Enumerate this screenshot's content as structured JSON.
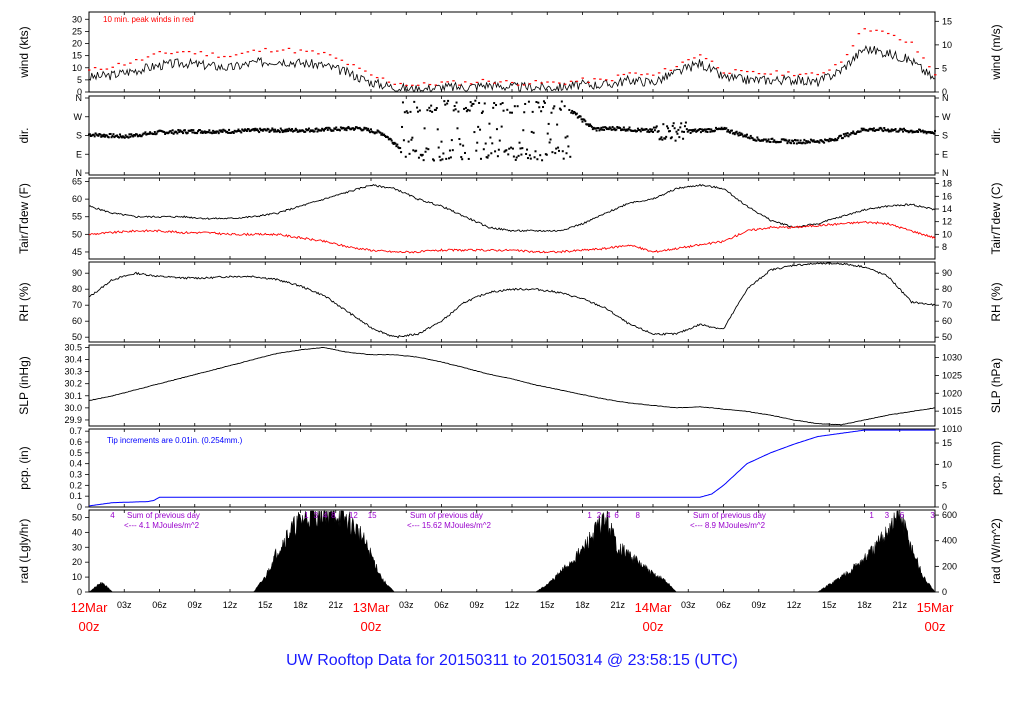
{
  "title": "UW Rooftop Data for 20150311  to  20150314 @ 23:58:15  (UTC)",
  "colors": {
    "black": "#000000",
    "red": "#ff0000",
    "blue": "#0000ff",
    "title_blue": "#1a1aff",
    "purple": "#9900cc"
  },
  "x_axis": {
    "hour_ticks": [
      "03z",
      "06z",
      "09z",
      "12z",
      "15z",
      "18z",
      "21z",
      "03z",
      "06z",
      "09z",
      "12z",
      "15z",
      "18z",
      "21z",
      "03z",
      "06z",
      "09z",
      "12z",
      "15z",
      "18z",
      "21z"
    ],
    "day_labels": [
      {
        "date": "12Mar",
        "hour": "00z"
      },
      {
        "date": "13Mar",
        "hour": "00z"
      },
      {
        "date": "14Mar",
        "hour": "00z"
      },
      {
        "date": "15Mar",
        "hour": "00z"
      }
    ]
  },
  "panels": {
    "wind": {
      "left_label": "wind (kts)",
      "right_label": "wind (m/s)",
      "left_ticks": [
        "0",
        "5",
        "10",
        "15",
        "20",
        "25",
        "30"
      ],
      "right_ticks": [
        "0",
        "5",
        "10",
        "15"
      ],
      "annotation": "10 min. peak winds in red"
    },
    "dir": {
      "left_label": "dir.",
      "right_label": "dir.",
      "ticks": [
        "N",
        "E",
        "S",
        "W",
        "N"
      ]
    },
    "temp": {
      "left_label": "Tair/Tdew (F)",
      "right_label": "Tair/Tdew (C)",
      "left_ticks": [
        "45",
        "50",
        "55",
        "60",
        "65"
      ],
      "right_ticks": [
        "8",
        "10",
        "12",
        "14",
        "16",
        "18"
      ]
    },
    "rh": {
      "left_label": "RH (%)",
      "right_label": "RH (%)",
      "left_ticks": [
        "50",
        "60",
        "70",
        "80",
        "90"
      ],
      "right_ticks": [
        "50",
        "60",
        "70",
        "80",
        "90"
      ]
    },
    "slp": {
      "left_label": "SLP (inHg)",
      "right_label": "SLP (hPa)",
      "left_ticks": [
        "29.9",
        "30.0",
        "30.1",
        "30.2",
        "30.3",
        "30.4",
        "30.5"
      ],
      "right_ticks": [
        "1010",
        "1015",
        "1020",
        "1025",
        "1030"
      ]
    },
    "pcp": {
      "left_label": "pcp. (in)",
      "right_label": "pcp. (mm)",
      "left_ticks": [
        "0",
        "0.1",
        "0.2",
        "0.3",
        "0.4",
        "0.5",
        "0.6",
        "0.7"
      ],
      "right_ticks": [
        "0",
        "5",
        "10",
        "15"
      ],
      "annotation": "Tip increments are 0.01in. (0.254mm.)"
    },
    "rad": {
      "left_label": "rad (Lgly/hr)",
      "right_label": "rad (W/m^2)",
      "left_ticks": [
        "0",
        "10",
        "20",
        "30",
        "40",
        "50"
      ],
      "right_ticks": [
        "0",
        "200",
        "400",
        "600"
      ],
      "sums": [
        {
          "line1": "Sum of previous day",
          "line2": "<--- 4.1 MJoules/m^2"
        },
        {
          "line1": "Sum of previous day",
          "line2": "<--- 15.62 MJoules/m^2"
        },
        {
          "line1": "Sum of previous day",
          "line2": "<--- 8.9 MJoules/m^2"
        }
      ],
      "hour_marks": [
        {
          "hour": 2,
          "text": "4"
        },
        {
          "hour": 18.5,
          "text": "1"
        },
        {
          "hour": 19.3,
          "text": "3"
        },
        {
          "hour": 20.1,
          "text": "4"
        },
        {
          "hour": 20.8,
          "text": "8"
        },
        {
          "hour": 22.5,
          "text": "12"
        },
        {
          "hour": 24.1,
          "text": "15"
        },
        {
          "hour": 42.6,
          "text": "1"
        },
        {
          "hour": 43.4,
          "text": "2"
        },
        {
          "hour": 44.2,
          "text": "4"
        },
        {
          "hour": 44.9,
          "text": "6"
        },
        {
          "hour": 46.7,
          "text": "8"
        },
        {
          "hour": 66.6,
          "text": "1"
        },
        {
          "hour": 67.9,
          "text": "3"
        },
        {
          "hour": 69.2,
          "text": "6"
        },
        {
          "hour": 71.8,
          "text": "3"
        }
      ]
    }
  },
  "chart_data": [
    {
      "type": "line",
      "title": "wind (kts)",
      "annotation": "10 min. peak winds in red",
      "xlabel": "",
      "ylabel": "wind (kts)",
      "y2label": "wind (m/s)",
      "ylim": [
        0,
        33
      ],
      "xlim_hours": [
        0,
        72
      ],
      "series": [
        {
          "x_hours": [
            0,
            2,
            4,
            6,
            8,
            10,
            12,
            14,
            16,
            18,
            20,
            22,
            24,
            26,
            28,
            30,
            32,
            34,
            36,
            38,
            40,
            42,
            44,
            46,
            48,
            50,
            52,
            54,
            56,
            58,
            60,
            62,
            64,
            66,
            68,
            70,
            72
          ],
          "values": [
            6,
            7,
            9,
            11,
            12,
            11,
            10,
            12,
            13,
            12,
            11,
            8,
            4,
            2,
            1,
            2,
            2,
            3,
            2,
            2,
            2,
            3,
            3,
            5,
            4,
            8,
            12,
            6,
            5,
            5,
            5,
            4,
            9,
            18,
            16,
            13,
            5
          ]
        },
        {
          "x_hours": [
            0,
            2,
            4,
            6,
            8,
            10,
            12,
            14,
            16,
            18,
            20,
            22,
            24,
            26,
            28,
            30,
            32,
            34,
            36,
            38,
            40,
            42,
            44,
            46,
            48,
            50,
            52,
            54,
            56,
            58,
            60,
            62,
            64,
            66,
            68,
            70,
            72
          ],
          "values": [
            9,
            11,
            13,
            16,
            17,
            16,
            15,
            17,
            18,
            17,
            16,
            12,
            7,
            4,
            3,
            4,
            4,
            5,
            4,
            4,
            4,
            5,
            5,
            8,
            7,
            11,
            16,
            9,
            8,
            8,
            8,
            7,
            13,
            27,
            24,
            20,
            8
          ]
        }
      ]
    },
    {
      "type": "scatter",
      "title": "dir.",
      "ylabel": "dir.",
      "ylim": [
        "N",
        "E",
        "S",
        "W",
        "N"
      ],
      "series": [
        {
          "x_hours": [
            0,
            3,
            6,
            9,
            12,
            15,
            18,
            21,
            23,
            25,
            27,
            29,
            31,
            33,
            35,
            37,
            39,
            41,
            43,
            45,
            48,
            51,
            54,
            57,
            60,
            63,
            66,
            69,
            72
          ],
          "values_deg": [
            185,
            175,
            195,
            200,
            200,
            205,
            205,
            210,
            215,
            190,
            100,
            300,
            100,
            320,
            110,
            300,
            100,
            300,
            210,
            215,
            200,
            200,
            210,
            160,
            150,
            155,
            210,
            205,
            195
          ]
        }
      ]
    },
    {
      "type": "line",
      "title": "Tair/Tdew (F)",
      "ylabel": "Tair/Tdew (F)",
      "y2label": "Tair/Tdew (C)",
      "ylim": [
        43,
        66
      ],
      "xlim_hours": [
        0,
        72
      ],
      "series": [
        {
          "x_hours": [
            0,
            2,
            4,
            6,
            8,
            10,
            12,
            14,
            16,
            18,
            20,
            22,
            24,
            26,
            28,
            30,
            32,
            34,
            36,
            38,
            40,
            42,
            44,
            46,
            48,
            50,
            52,
            54,
            56,
            58,
            60,
            62,
            64,
            66,
            68,
            70,
            72
          ],
          "values": [
            58,
            56,
            55,
            55,
            55,
            54.5,
            54.5,
            55,
            56,
            58,
            60,
            62,
            64,
            63,
            60,
            58,
            55,
            52,
            51,
            51,
            51,
            53,
            56,
            59,
            60,
            63,
            64,
            63,
            58,
            54,
            52,
            53,
            55,
            57,
            58,
            58.5,
            57
          ]
        },
        {
          "x_hours": [
            0,
            2,
            4,
            6,
            8,
            10,
            12,
            14,
            16,
            18,
            20,
            22,
            24,
            26,
            28,
            30,
            32,
            34,
            36,
            38,
            40,
            42,
            44,
            46,
            48,
            50,
            52,
            54,
            56,
            58,
            60,
            62,
            64,
            66,
            68,
            70,
            72
          ],
          "values": [
            50,
            50.5,
            51,
            51,
            50.5,
            50.5,
            50,
            50,
            50,
            49,
            48,
            46.5,
            45.5,
            45,
            45,
            45.5,
            45.5,
            45.5,
            45.5,
            45,
            45,
            45.5,
            46,
            47,
            45,
            46,
            47,
            48,
            51,
            52,
            52,
            52.5,
            53,
            53.5,
            53,
            51,
            49
          ]
        }
      ]
    },
    {
      "type": "line",
      "title": "RH (%)",
      "ylabel": "RH (%)",
      "y2label": "RH (%)",
      "ylim": [
        47,
        97
      ],
      "xlim_hours": [
        0,
        72
      ],
      "series": [
        {
          "x_hours": [
            0,
            2,
            4,
            6,
            8,
            10,
            12,
            14,
            16,
            18,
            20,
            22,
            24,
            26,
            28,
            30,
            32,
            34,
            36,
            38,
            40,
            42,
            44,
            46,
            48,
            50,
            52,
            54,
            56,
            58,
            60,
            62,
            64,
            66,
            68,
            70,
            72
          ],
          "values": [
            75,
            86,
            90,
            88,
            87,
            87,
            88,
            88,
            86,
            82,
            76,
            66,
            56,
            50,
            52,
            60,
            72,
            78,
            80,
            80,
            78,
            74,
            68,
            58,
            52,
            52,
            58,
            55,
            80,
            92,
            95,
            96,
            96,
            94,
            88,
            72,
            70
          ]
        }
      ]
    },
    {
      "type": "line",
      "title": "SLP (inHg)",
      "ylabel": "SLP (inHg)",
      "y2label": "SLP (hPa)",
      "ylim": [
        29.85,
        30.52
      ],
      "xlim_hours": [
        0,
        72
      ],
      "series": [
        {
          "x_hours": [
            0,
            2,
            4,
            6,
            8,
            10,
            12,
            14,
            16,
            18,
            20,
            22,
            24,
            26,
            28,
            30,
            32,
            34,
            36,
            38,
            40,
            42,
            44,
            46,
            48,
            50,
            52,
            54,
            56,
            58,
            60,
            62,
            64,
            66,
            68,
            70,
            72
          ],
          "values": [
            30.06,
            30.1,
            30.15,
            30.2,
            30.25,
            30.3,
            30.35,
            30.4,
            30.45,
            30.48,
            30.5,
            30.46,
            30.44,
            30.44,
            30.42,
            30.38,
            30.33,
            30.28,
            30.24,
            30.19,
            30.15,
            30.11,
            30.07,
            30.04,
            30.02,
            30.0,
            30.01,
            29.99,
            29.97,
            29.94,
            29.9,
            29.87,
            29.86,
            29.9,
            29.94,
            29.97,
            30.0
          ]
        }
      ]
    },
    {
      "type": "area",
      "title": "pcp. (in)",
      "annotation": "Tip increments are 0.01in. (0.254mm.)",
      "ylabel": "pcp. (in)",
      "y2label": "pcp. (mm)",
      "ylim": [
        0,
        0.72
      ],
      "xlim_hours": [
        0,
        72
      ],
      "series": [
        {
          "x_hours": [
            0,
            2,
            5,
            5.5,
            6,
            24,
            48,
            52,
            53,
            54,
            55,
            56,
            58,
            60,
            62,
            64,
            66,
            72
          ],
          "values": [
            0.01,
            0.04,
            0.05,
            0.06,
            0.09,
            0.09,
            0.09,
            0.09,
            0.12,
            0.2,
            0.3,
            0.4,
            0.5,
            0.58,
            0.65,
            0.68,
            0.71,
            0.71
          ]
        }
      ]
    },
    {
      "type": "area",
      "title": "rad (Lgly/hr)",
      "ylabel": "rad (Lgly/hr)",
      "y2label": "rad (W/m^2)",
      "ylim": [
        0,
        55
      ],
      "xlim_hours": [
        0,
        72
      ],
      "series": [
        {
          "x_hours": [
            0,
            0.5,
            1,
            1.5,
            2,
            6,
            14,
            15,
            16,
            17,
            18,
            19,
            20,
            21,
            22,
            23,
            24,
            25,
            26,
            38,
            39,
            40,
            41,
            42,
            43,
            44,
            45,
            46,
            47,
            48,
            49,
            50,
            62,
            63,
            64,
            65,
            66,
            67,
            68,
            69,
            70,
            71,
            72
          ],
          "values": [
            0,
            3,
            6,
            4,
            0,
            0,
            0,
            10,
            27,
            40,
            48,
            52,
            54,
            53,
            48,
            40,
            25,
            8,
            0,
            0,
            5,
            12,
            20,
            28,
            40,
            50,
            30,
            25,
            18,
            12,
            8,
            0,
            0,
            5,
            10,
            16,
            22,
            30,
            42,
            52,
            30,
            10,
            0
          ]
        }
      ]
    }
  ]
}
